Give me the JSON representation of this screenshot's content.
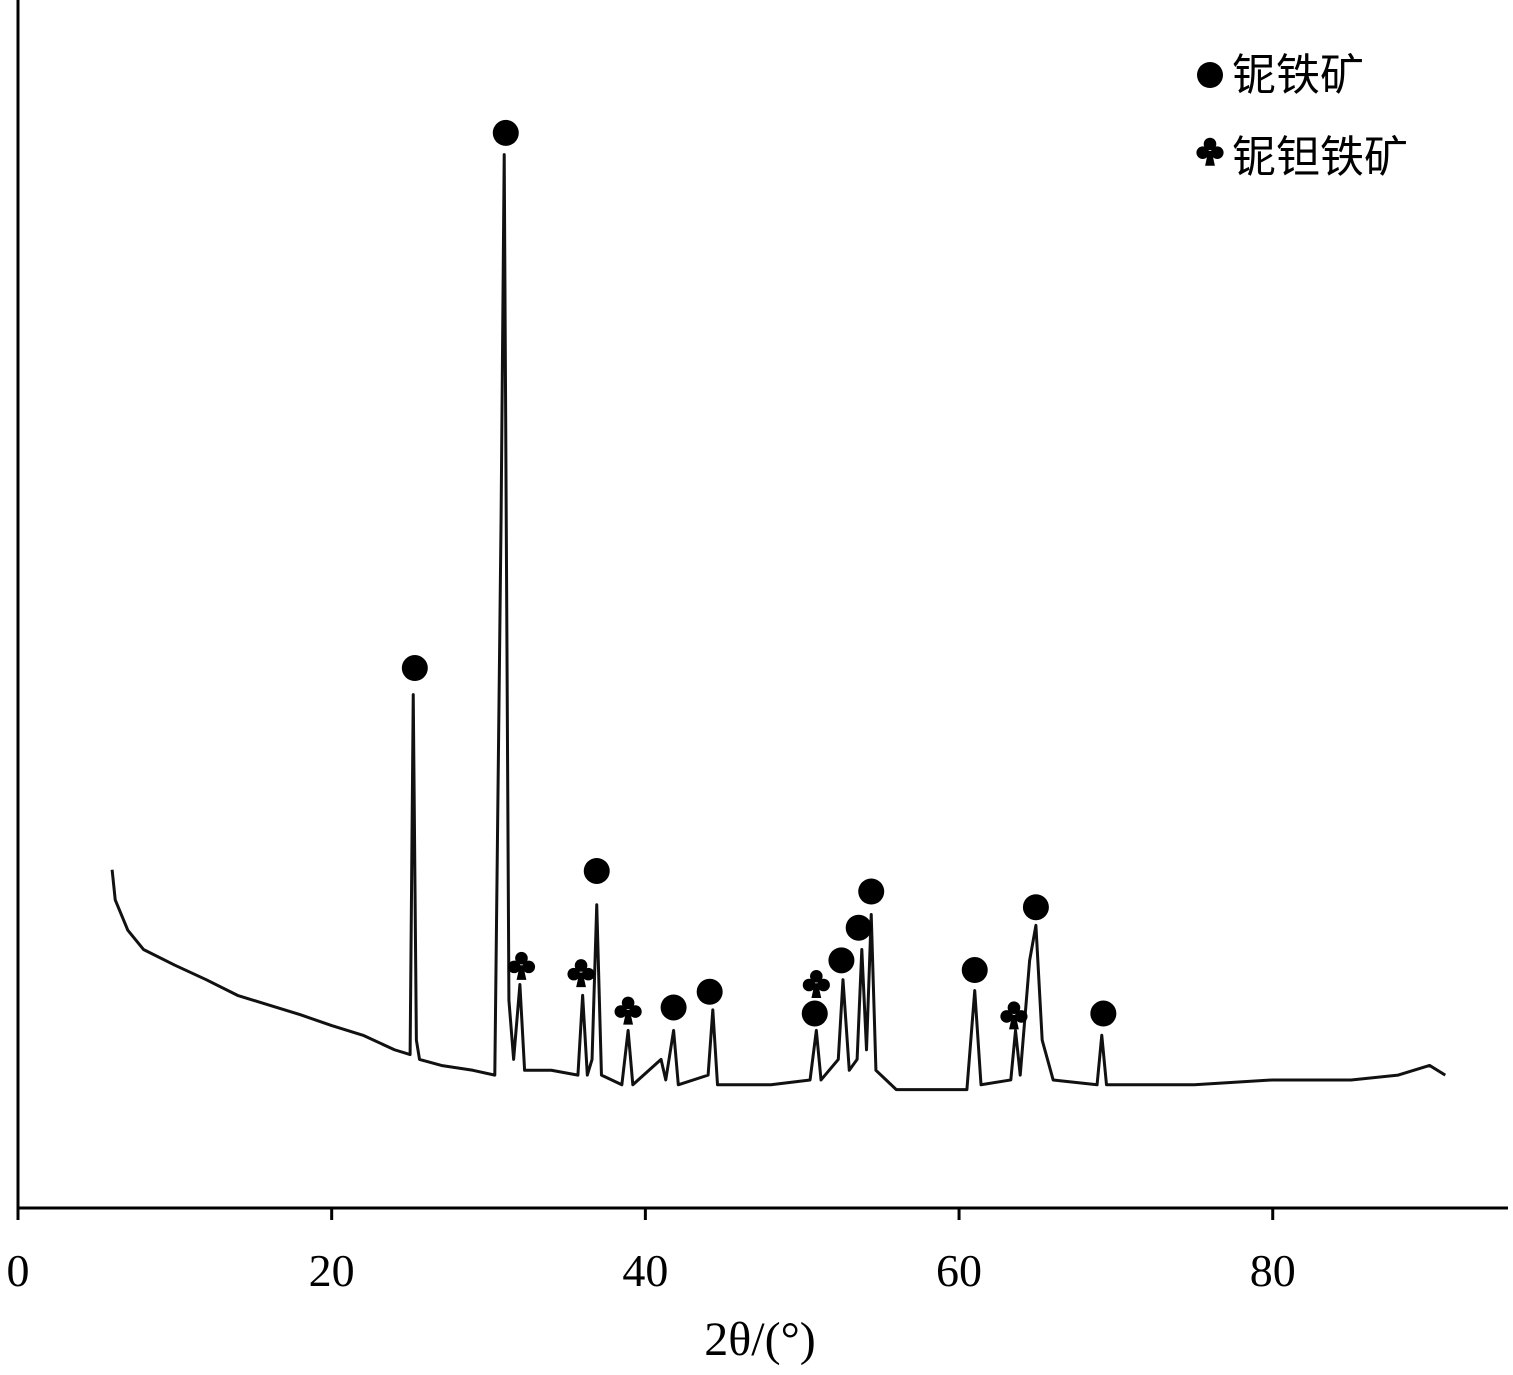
{
  "chart_data": {
    "type": "line",
    "xlabel": "2θ/(°)",
    "xlim": [
      0,
      95
    ],
    "xticks": [
      0,
      20,
      40,
      60,
      80
    ],
    "ylim": [
      0,
      100
    ],
    "color": "#111111",
    "legend": "top-right",
    "x": [
      6,
      6.2,
      7,
      8,
      10,
      12,
      14,
      16,
      18,
      20,
      22,
      24,
      25,
      25.2,
      25.4,
      25.6,
      27,
      29,
      30.4,
      30.8,
      31.0,
      31.3,
      31.6,
      32,
      32.3,
      34,
      35.7,
      36,
      36.3,
      36.6,
      36.9,
      37.2,
      38.5,
      38.9,
      39.2,
      41,
      41.3,
      41.8,
      42.1,
      44,
      44.3,
      44.6,
      48,
      50.5,
      50.9,
      51.2,
      52.3,
      52.6,
      53,
      53.5,
      53.8,
      54.1,
      54.4,
      54.7,
      56,
      60.5,
      61.0,
      61.4,
      63.3,
      63.6,
      63.9,
      64.5,
      64.9,
      65.3,
      66,
      68.8,
      69.1,
      69.4,
      75,
      80,
      85,
      88,
      90,
      91
    ],
    "values": [
      28.0,
      25.5,
      23.0,
      21.4,
      20.1,
      18.9,
      17.6,
      16.8,
      16.0,
      15.1,
      14.3,
      13.1,
      12.7,
      42.5,
      13.9,
      12.3,
      11.8,
      11.4,
      11.0,
      57.0,
      87.2,
      17.2,
      12.3,
      18.5,
      11.4,
      11.4,
      11.0,
      17.6,
      11.0,
      12.3,
      25.1,
      11.0,
      10.2,
      14.7,
      10.2,
      12.3,
      10.6,
      14.7,
      10.2,
      11.0,
      16.4,
      10.2,
      10.2,
      10.6,
      14.7,
      10.6,
      12.3,
      18.9,
      11.4,
      12.3,
      21.4,
      13.1,
      24.3,
      11.4,
      9.8,
      9.8,
      18.0,
      10.2,
      10.6,
      14.7,
      11.0,
      20.5,
      23.4,
      13.9,
      10.6,
      10.2,
      14.3,
      10.2,
      10.2,
      10.6,
      10.6,
      11.0,
      11.8,
      11.0
    ],
    "markers": [
      {
        "name": "铌铁矿",
        "symbol": "circle",
        "color": "#000000",
        "x": [
          25.3,
          31.1,
          36.9,
          41.8,
          44.1,
          50.8,
          52.5,
          53.6,
          54.4,
          61.0,
          64.9,
          69.2
        ],
        "values": [
          44.7,
          89.0,
          27.9,
          16.6,
          17.9,
          16.1,
          20.5,
          23.2,
          26.2,
          19.7,
          24.9,
          16.1
        ]
      },
      {
        "name": "铌钽铁矿",
        "symbol": "club",
        "color": "#000000",
        "x": [
          32.1,
          35.9,
          38.9,
          50.9,
          63.5
        ],
        "values": [
          20.1,
          19.5,
          16.4,
          18.6,
          16.0
        ]
      }
    ]
  }
}
